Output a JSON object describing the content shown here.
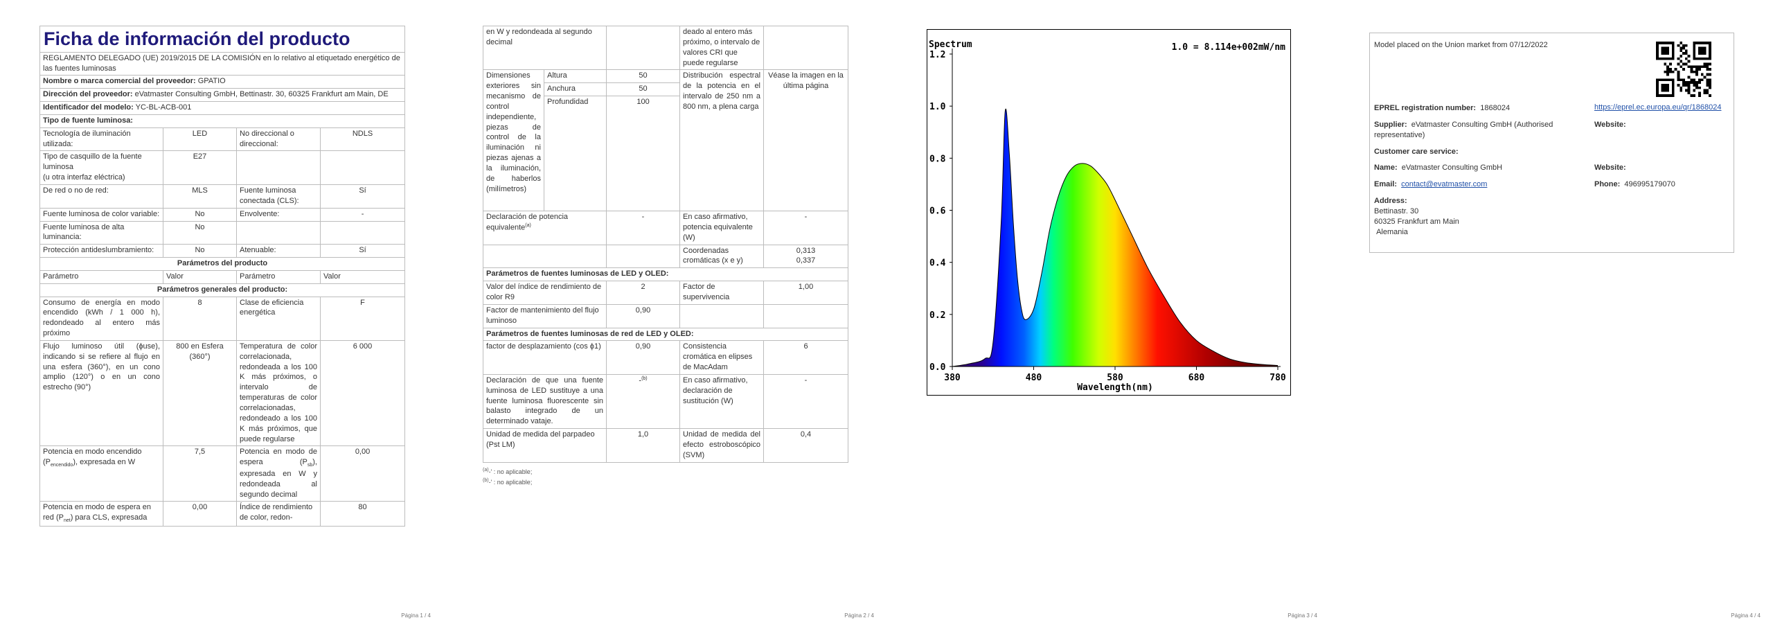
{
  "pages": [
    {
      "number": "Página 1 / 4"
    },
    {
      "number": "Página 2 / 4"
    },
    {
      "number": "Página 3 / 4"
    },
    {
      "number": "Página 4 / 4"
    }
  ],
  "page1": {
    "title": "Ficha de información del producto",
    "regulation": "REGLAMENTO DELEGADO (UE) 2019/2015 DE LA COMISIÓN en lo relativo al etiquetado energético de las fuentes luminosas",
    "supplier_name_label": "Nombre o marca comercial del proveedor:",
    "supplier_name": "GPATIO",
    "supplier_address_label": "Dirección del proveedor:",
    "supplier_address": "eVatmaster Consulting GmbH, Bettinastr. 30, 60325 Frankfurt am Main, DE",
    "model_id_label": "Identificador del modelo:",
    "model_id": "YC-BL-ACB-001",
    "source_type_header": "Tipo de fuente luminosa:",
    "lighting_tech_label": "Tecnología de iluminación utilizada:",
    "lighting_tech": "LED",
    "non_directional_label": "No direccional o direccional:",
    "non_directional": "NDLS",
    "cap_type_label": "Tipo de casquillo de la fuente luminosa",
    "cap_type_note": "(u otra interfaz eléctrica)",
    "cap_type": "E27",
    "mains_label": "De red o no de red:",
    "mains": "MLS",
    "connected_label": "Fuente luminosa conectada (CLS):",
    "connected": "Sí",
    "colour_tunable_label": "Fuente luminosa de color variable:",
    "colour_tunable": "No",
    "envelope_label": "Envolvente:",
    "envelope": "-",
    "high_luminance_label": "Fuente luminosa de alta luminancia:",
    "high_luminance": "No",
    "anti_glare_label": "Protección antideslumbramiento:",
    "anti_glare": "No",
    "dimmable_label": "Atenuable:",
    "dimmable": "Sí",
    "params_header": "Parámetros del producto",
    "col_param": "Parámetro",
    "col_value": "Valor",
    "general_header": "Parámetros generales del producto:",
    "energy_label": "Consumo de energía en modo encendido (kWh / 1 000 h), redondeado al entero más próximo",
    "energy": "8",
    "efficiency_label": "Clase de eficiencia energética",
    "efficiency": "F",
    "flux_label": "Flujo luminoso útil (ϕuse), indicando si se refiere al flujo en una esfera (360°), en un cono amplio (120°) o en un cono estrecho (90°)",
    "flux": "800 en Esfera (360°)",
    "cct_label": "Temperatura de color correlacionada, redondeada a los 100 K más próximos, o intervalo de temperaturas de color correlacionadas, redondeado a los 100 K más próximos, que puede regularse",
    "cct": "6 000",
    "on_power_label_pre": "Potencia en modo encendido (P",
    "on_power_sub": "encendido",
    "on_power_label_post": "), expresada en W",
    "on_power": "7,5",
    "standby_label_pre": "Potencia en modo de espera (P",
    "standby_sub": "sb",
    "standby_label_post": "), expresada en W y redondeada al segundo decimal",
    "standby": "0,00",
    "net_standby_label_pre": "Potencia en modo de espera en red (P",
    "net_standby_sub": "net",
    "net_standby_label_post": ") para CLS, expresada",
    "net_standby": "0,00",
    "cri_label": "Índice de rendimiento de color, redon-",
    "cri": "80"
  },
  "page2": {
    "cont_left": "en W y redondeada al segundo decimal",
    "cont_right": "deado al entero más próximo, o intervalo de valores CRI que puede regularse",
    "dims_label": "Dimensiones exteriores sin mecanismo de control independiente, piezas de control de la iluminación ni piezas ajenas a la iluminación, de haberlos (milímetros)",
    "height_label": "Altura",
    "height": "50",
    "width_label": "Anchura",
    "width": "50",
    "depth_label": "Profundidad",
    "depth": "100",
    "spectral_label": "Distribución espectral de la potencia en el intervalo de 250 nm a 800 nm, a plena carga",
    "spectral": "Véase la imagen en la última página",
    "equiv_label": "Declaración de potencia equivalente",
    "equiv_sup": "(a)",
    "equiv": "-",
    "equiv_w_label": "En caso afirmativo, potencia equivalente (W)",
    "equiv_w": "-",
    "chroma_label": "Coordenadas cromáticas (x e y)",
    "chroma_x": "0,313",
    "chroma_y": "0,337",
    "led_header": "Parámetros de fuentes luminosas de LED y OLED:",
    "r9_label": "Valor del índice de rendimiento de color R9",
    "r9": "2",
    "survival_label": "Factor de supervivencia",
    "survival": "1,00",
    "lumen_maint_label": "Factor de mantenimiento del flujo luminoso",
    "lumen_maint": "0,90",
    "mains_led_header": "Parámetros de fuentes luminosas de red de LED y OLED:",
    "displacement_label": "factor de desplazamiento (cos ϕ1)",
    "displacement": "0,90",
    "macadam_label": "Consistencia cromática en elipses de MacAdam",
    "macadam": "6",
    "replace_label": "Declaración de que una fuente luminosa de LED sustituye a una fuente luminosa fluorescente sin balasto integrado de un determinado vataje.",
    "replace": "-",
    "replace_sup": "(b)",
    "replace_w_label": "En caso afirmativo, declaración de sustitución (W)",
    "replace_w": "-",
    "flicker_label": "Unidad de medida del parpadeo (Pst LM)",
    "flicker": "1,0",
    "strobo_label": "Unidad de medida del efecto estroboscópico (SVM)",
    "strobo": "0,4",
    "note_a_sup": "(a)",
    "note_a": "-' : no aplicable;",
    "note_b_sup": "(b)",
    "note_b": "-' : no aplicable;"
  },
  "page3": {
    "chart_data": {
      "type": "area",
      "title": "",
      "corner_label": "Spectrum",
      "scale_text": "1.0 = 8.114e+002mW/nm",
      "xlabel": "Wavelength(nm)",
      "ylabel": "",
      "x_ticks": [
        380,
        480,
        580,
        680,
        780
      ],
      "y_ticks": [
        "0.0",
        "0.2",
        "0.4",
        "0.6",
        "0.8",
        "1.0",
        "1.2"
      ],
      "xlim": [
        380,
        780
      ],
      "ylim": [
        0,
        1.2
      ],
      "colors": "visible-spectrum gradient fill under curve",
      "x": [
        380,
        400,
        420,
        430,
        440,
        445,
        450,
        455,
        460,
        465,
        470,
        480,
        490,
        500,
        510,
        520,
        530,
        540,
        550,
        560,
        570,
        580,
        600,
        620,
        640,
        660,
        680,
        700,
        720,
        740,
        760,
        780
      ],
      "y": [
        0.0,
        0.01,
        0.03,
        0.09,
        0.55,
        0.98,
        0.82,
        0.55,
        0.34,
        0.22,
        0.18,
        0.22,
        0.36,
        0.53,
        0.65,
        0.73,
        0.77,
        0.78,
        0.77,
        0.74,
        0.7,
        0.64,
        0.51,
        0.38,
        0.27,
        0.17,
        0.1,
        0.06,
        0.03,
        0.015,
        0.008,
        0.004
      ]
    }
  },
  "page4": {
    "placed": "Model placed on the Union market from 07/12/2022",
    "eprel_label": "EPREL registration number:",
    "eprel": "1868024",
    "eprel_link": "https://eprel.ec.europa.eu/qr/1868024",
    "supplier_label": "Supplier:",
    "supplier": "eVatmaster Consulting GmbH (Authorised representative)",
    "website_label": "Website:",
    "care_header": "Customer care service:",
    "name_label": "Name:",
    "name": "eVatmaster Consulting GmbH",
    "email_label": "Email:",
    "email": "contact@evatmaster.com",
    "phone_label": "Phone:",
    "phone": "496995179070",
    "address_label": "Address:",
    "address1": "Bettinastr. 30",
    "address2": "60325 Frankfurt am Main",
    "address3": "Alemania"
  }
}
